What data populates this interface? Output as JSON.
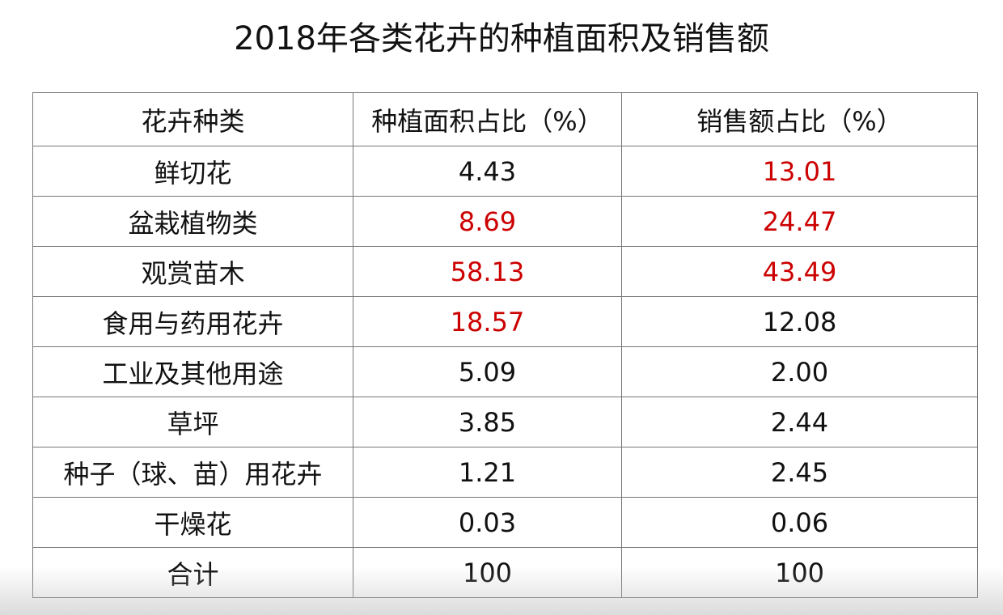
{
  "title": "2018年各类花卉的种植面积及销售额",
  "table": {
    "header": [
      "花卉种类",
      "种植面积占比（%）",
      "销售额占比（%）"
    ],
    "highlight_color": "#cc0000",
    "rows": [
      {
        "cells": [
          "鲜切花",
          "4.43",
          "13.01"
        ],
        "highlight": [
          false,
          false,
          true
        ]
      },
      {
        "cells": [
          "盆栽植物类",
          "8.69",
          "24.47"
        ],
        "highlight": [
          false,
          true,
          true
        ]
      },
      {
        "cells": [
          "观赏苗木",
          "58.13",
          "43.49"
        ],
        "highlight": [
          false,
          true,
          true
        ]
      },
      {
        "cells": [
          "食用与药用花卉",
          "18.57",
          "12.08"
        ],
        "highlight": [
          false,
          true,
          false
        ]
      },
      {
        "cells": [
          "工业及其他用途",
          "5.09",
          "2.00"
        ],
        "highlight": [
          false,
          false,
          false
        ]
      },
      {
        "cells": [
          "草坪",
          "3.85",
          "2.44"
        ],
        "highlight": [
          false,
          false,
          false
        ]
      },
      {
        "cells": [
          "种子（球、苗）用花卉",
          "1.21",
          "2.45"
        ],
        "highlight": [
          false,
          false,
          false
        ]
      },
      {
        "cells": [
          "干燥花",
          "0.03",
          "0.06"
        ],
        "highlight": [
          false,
          false,
          false
        ]
      },
      {
        "cells": [
          "合计",
          "100",
          "100"
        ],
        "highlight": [
          false,
          false,
          false
        ]
      }
    ]
  }
}
